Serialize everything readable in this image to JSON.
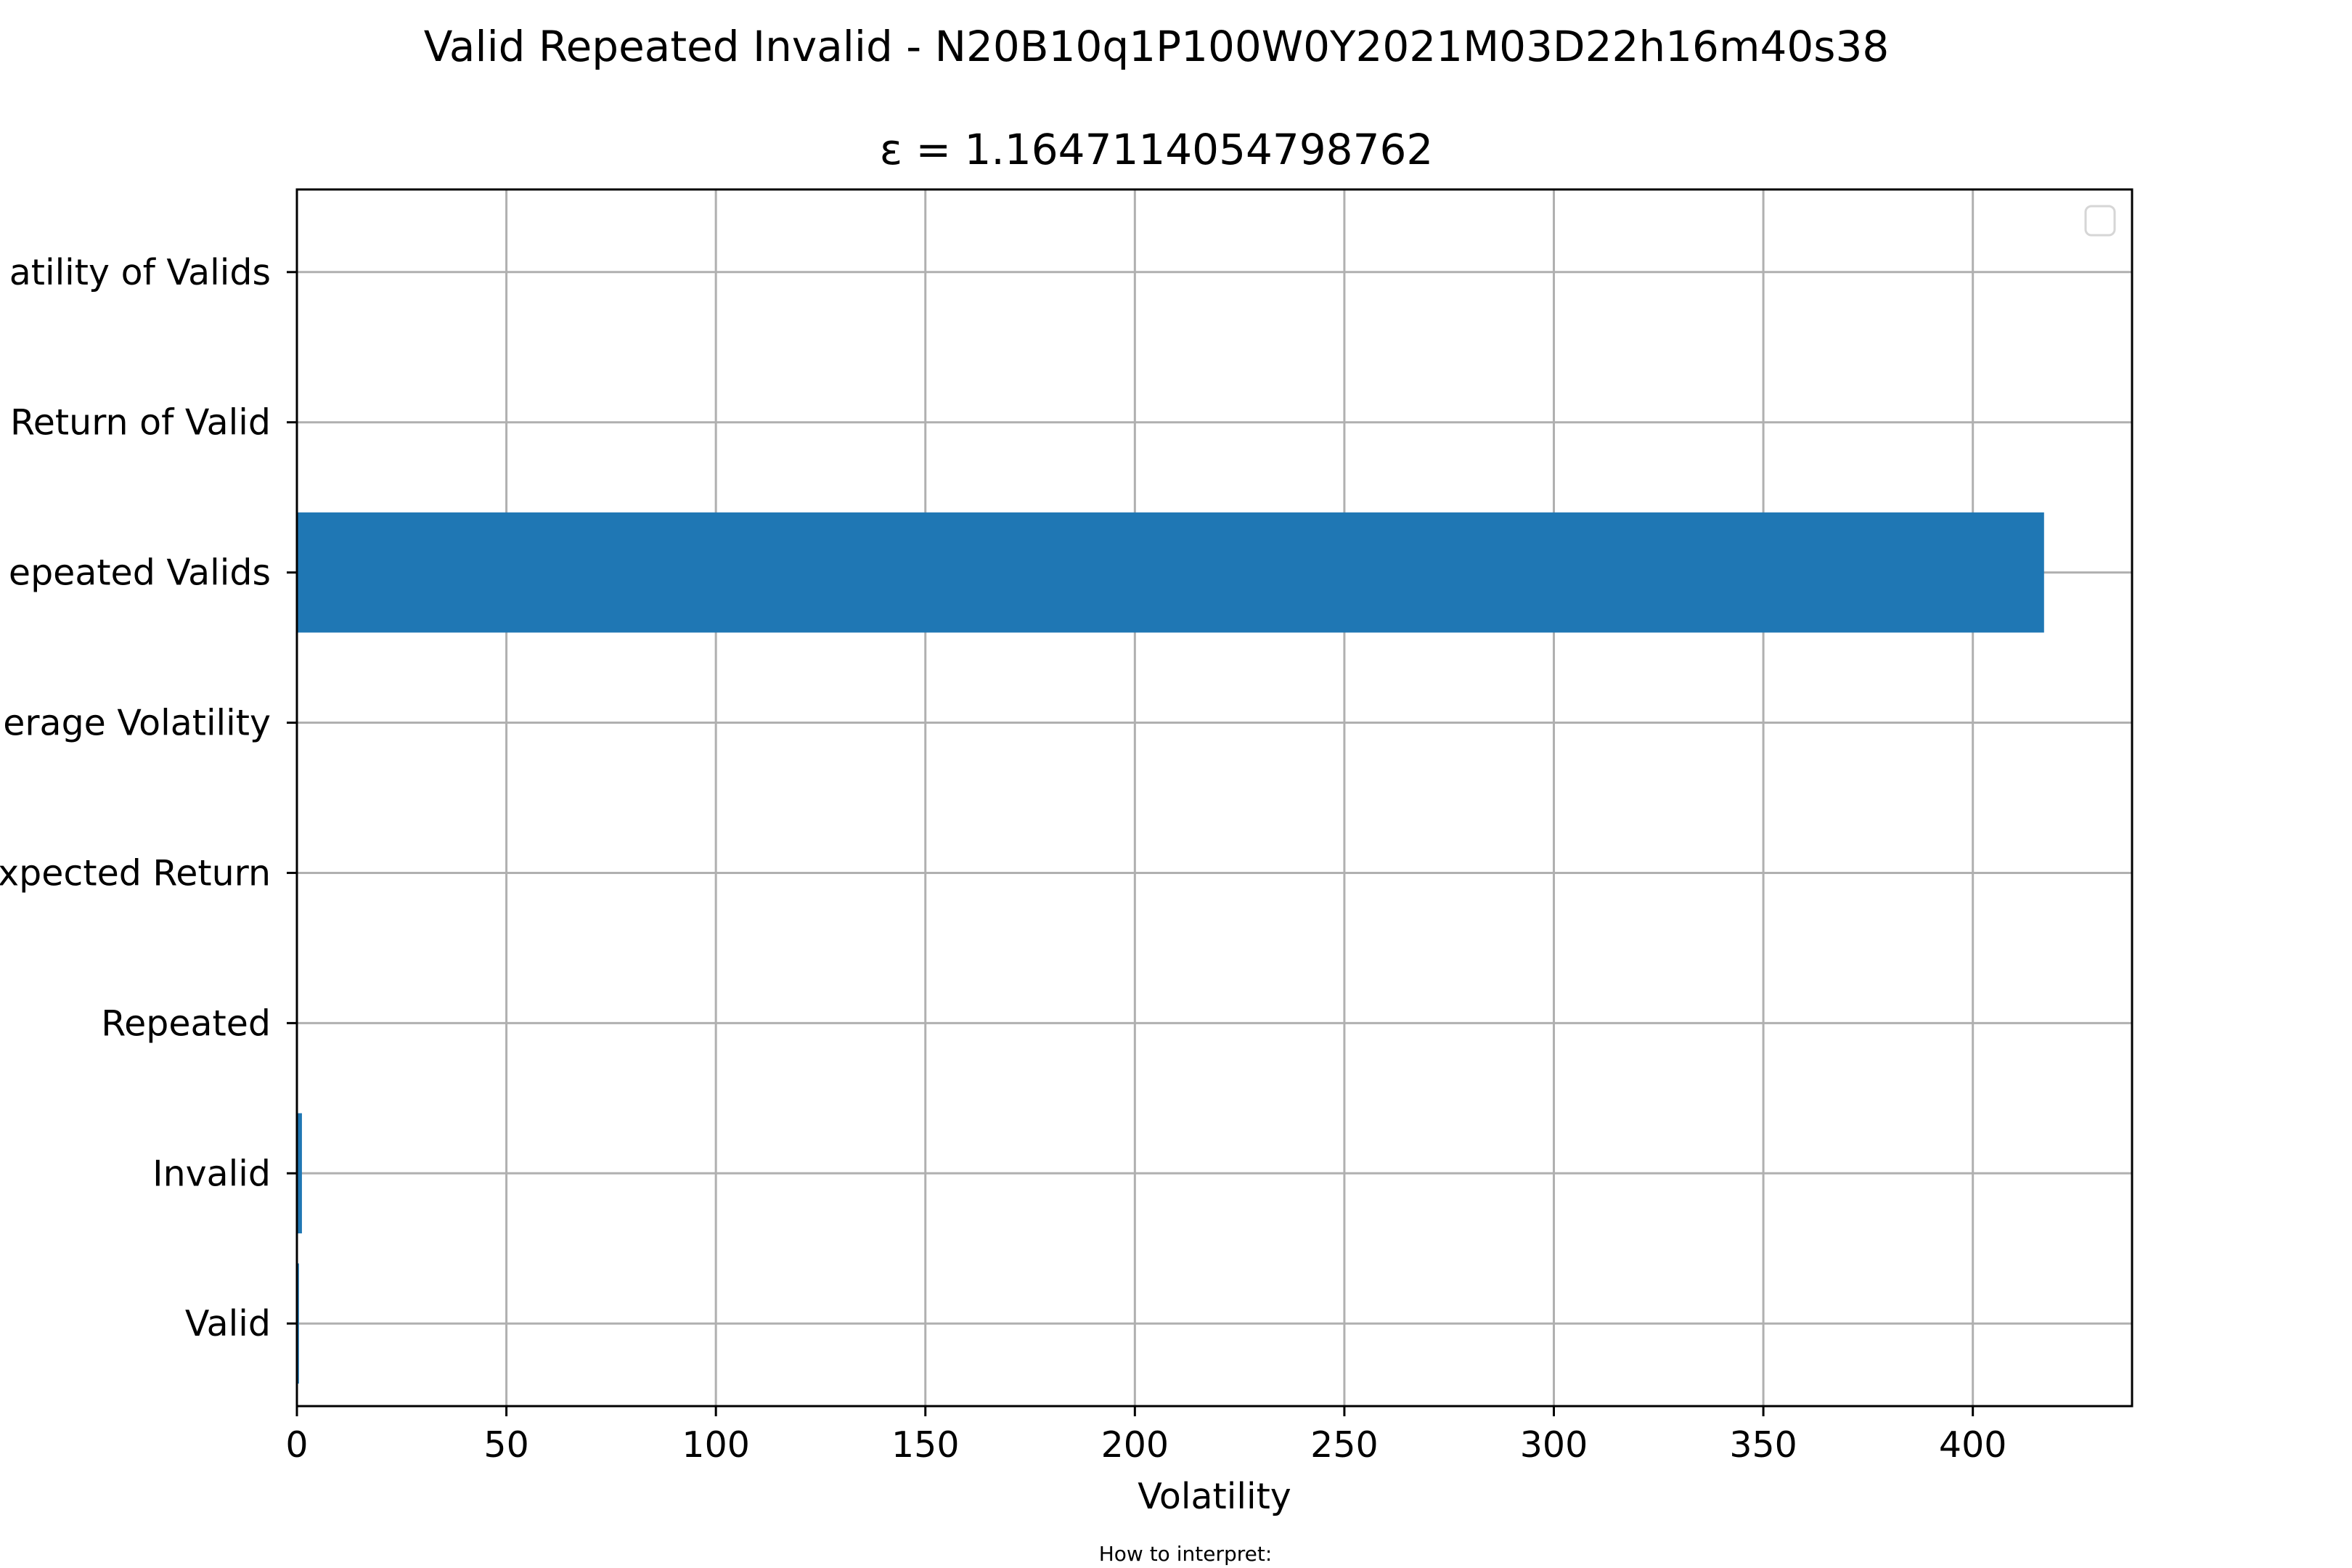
{
  "chart_data": {
    "type": "bar",
    "orientation": "horizontal",
    "title": "Valid Repeated Invalid - N20B10q1P100W0Y2021M03D22h16m40s38",
    "subtitle": "ε = 1.1647114054798762",
    "xlabel": "Volatility",
    "ylabel": "",
    "footer": "How to interpret:",
    "categories": [
      "Valid",
      "Invalid",
      "Repeated",
      "Expected Return",
      "Average Volatility",
      "Repeated Valids",
      "Return of Valid",
      "Volatility of Valids"
    ],
    "category_labels_visible": [
      "Valid",
      "Invalid",
      "Repeated",
      "xpected Return",
      "erage Volatility",
      "epeated Valids",
      "Return of Valid",
      "atility of Valids"
    ],
    "values": [
      0.5,
      1.2,
      0,
      0,
      0,
      417,
      0,
      0
    ],
    "xlim": [
      0,
      438
    ],
    "xticks": [
      0,
      50,
      100,
      150,
      200,
      250,
      300,
      350,
      400
    ],
    "grid": true,
    "legend": "top-right",
    "bar_color": "#1f77b4"
  }
}
